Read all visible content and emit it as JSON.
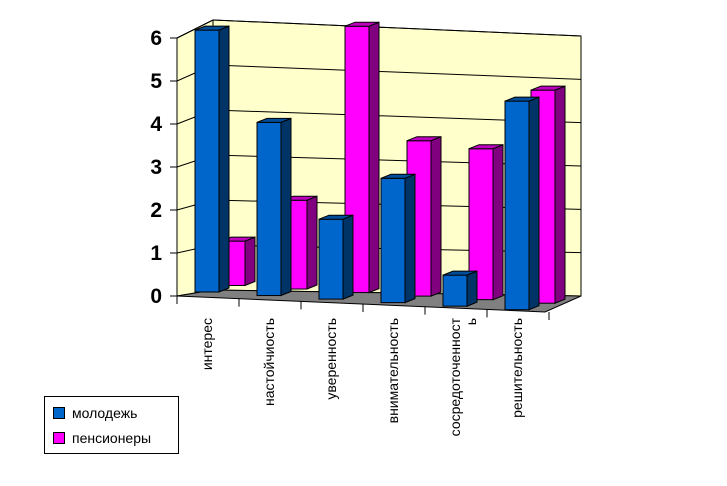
{
  "chart_data": {
    "type": "bar",
    "title": "",
    "xlabel": "",
    "ylabel": "",
    "ylim": [
      0,
      6
    ],
    "yticks": [
      0,
      1,
      2,
      3,
      4,
      5,
      6
    ],
    "categories": [
      "интерес",
      "настойчиость",
      "уверенность",
      "внимательность",
      "сосредоточенност\nь",
      "решительность"
    ],
    "series": [
      {
        "name": "молодежь",
        "values": [
          5.9,
          3.9,
          1.8,
          2.8,
          0.7,
          4.7
        ],
        "color": "#0066cc"
      },
      {
        "name": "пенсионеры",
        "values": [
          1.0,
          2.0,
          6.0,
          3.5,
          3.4,
          4.8
        ],
        "color": "#ff00ff"
      }
    ],
    "grid": true,
    "legend": "bottom-left",
    "style": "3d-perspective"
  }
}
